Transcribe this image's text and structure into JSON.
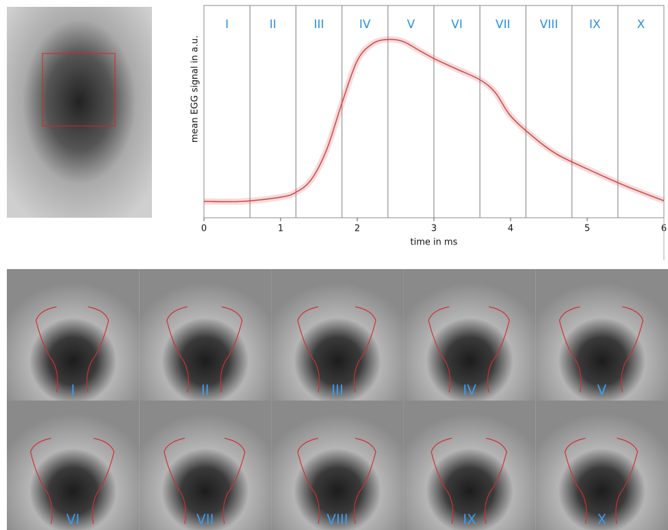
{
  "chart_data": {
    "type": "line",
    "y_label": "mean EGG signal in a.u.",
    "x_label": "time in ms",
    "phases": [
      "I",
      "II",
      "III",
      "IV",
      "V",
      "VI",
      "VII",
      "VIII",
      "IX",
      "X"
    ],
    "phase_boundaries": [
      0.6,
      1.2,
      1.8,
      2.4,
      3.0,
      3.6,
      4.2,
      4.8,
      5.4
    ],
    "x": [
      0,
      0.5,
      1,
      1.2,
      1.4,
      1.6,
      1.8,
      2.0,
      2.2,
      2.4,
      2.6,
      2.8,
      3.0,
      3.3,
      3.6,
      3.8,
      4.0,
      4.3,
      4.6,
      5.0,
      5.5,
      6.0
    ],
    "values": [
      0.077,
      0.077,
      0.097,
      0.12,
      0.18,
      0.32,
      0.54,
      0.74,
      0.82,
      0.84,
      0.83,
      0.79,
      0.75,
      0.7,
      0.65,
      0.59,
      0.48,
      0.38,
      0.3,
      0.23,
      0.15,
      0.08
    ],
    "color": "#d04a4a",
    "xlim": [
      0,
      6
    ],
    "xticks": [
      0,
      1,
      2,
      3,
      4,
      5,
      6
    ],
    "ylim": [
      0,
      1
    ]
  }
}
